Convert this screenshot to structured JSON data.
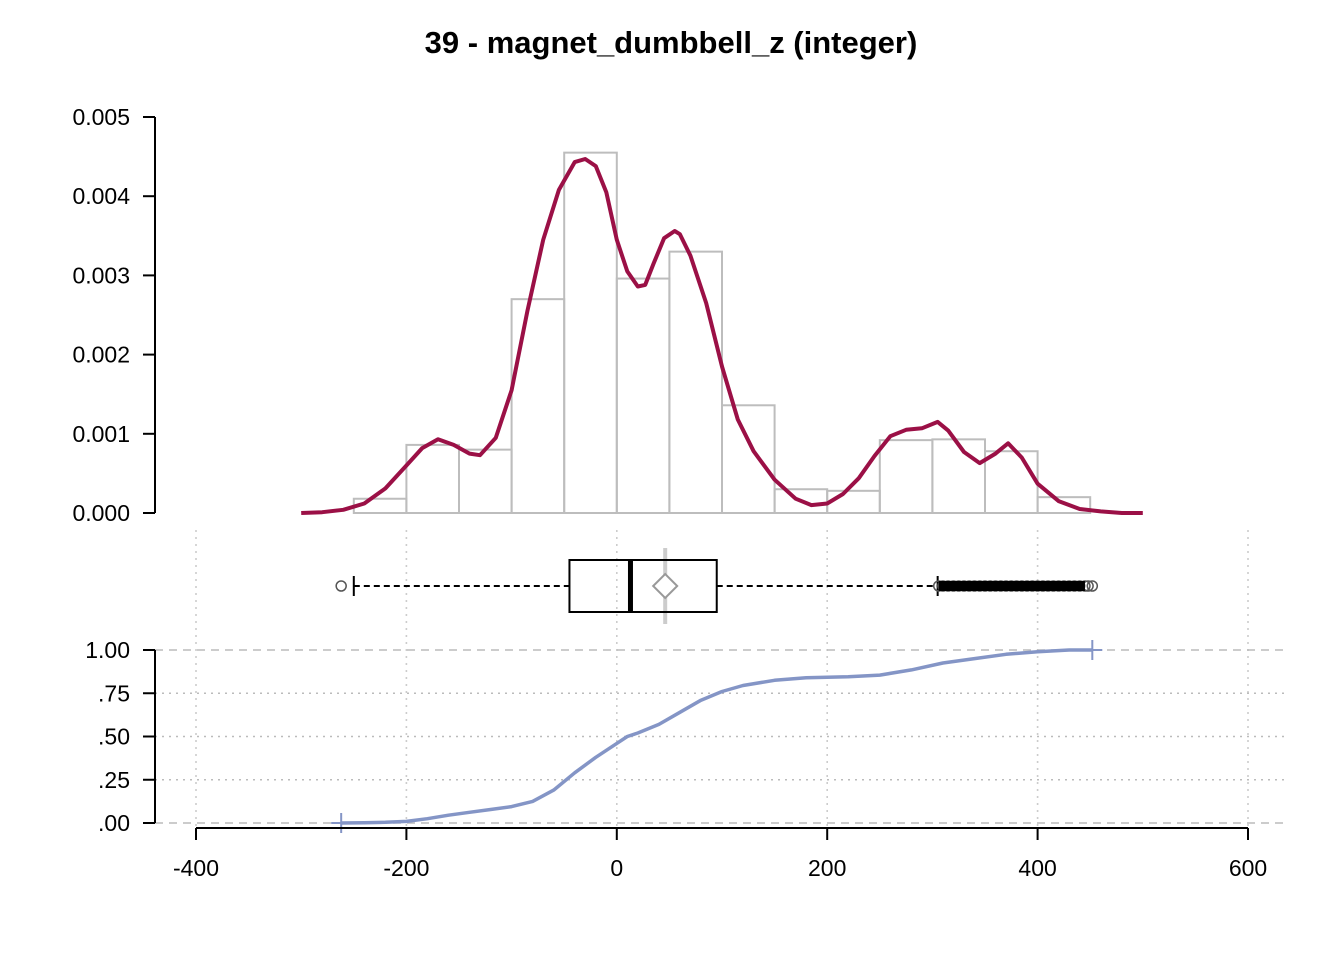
{
  "title": "39 - magnet_dumbbell_z (integer)",
  "colors": {
    "density": "#9b1046",
    "histogram": "#bdbdbd",
    "ecdf": "#8495c6",
    "mean_marker": "#999999"
  },
  "chart_data": [
    {
      "type": "bar",
      "panel": "histogram-density",
      "ylim": [
        0,
        0.005
      ],
      "yticks": [
        "0.000",
        "0.001",
        "0.002",
        "0.003",
        "0.004",
        "0.005"
      ],
      "ytick_values": [
        0,
        0.001,
        0.002,
        0.003,
        0.004,
        0.005
      ],
      "bins": [
        {
          "from": -250,
          "to": -200,
          "density": 0.00018
        },
        {
          "from": -200,
          "to": -150,
          "density": 0.00086
        },
        {
          "from": -150,
          "to": -100,
          "density": 0.0008
        },
        {
          "from": -100,
          "to": -50,
          "density": 0.0027
        },
        {
          "from": -50,
          "to": 0,
          "density": 0.00455
        },
        {
          "from": 0,
          "to": 50,
          "density": 0.00296
        },
        {
          "from": 50,
          "to": 100,
          "density": 0.0033
        },
        {
          "from": 100,
          "to": 150,
          "density": 0.00136
        },
        {
          "from": 150,
          "to": 200,
          "density": 0.0003
        },
        {
          "from": 200,
          "to": 250,
          "density": 0.00028
        },
        {
          "from": 250,
          "to": 300,
          "density": 0.00092
        },
        {
          "from": 300,
          "to": 350,
          "density": 0.00093
        },
        {
          "from": 350,
          "to": 400,
          "density": 0.00078
        },
        {
          "from": 400,
          "to": 450,
          "density": 0.0002
        }
      ],
      "density_curve": {
        "x": [
          -300,
          -280,
          -260,
          -240,
          -220,
          -200,
          -185,
          -170,
          -155,
          -140,
          -130,
          -115,
          -100,
          -85,
          -70,
          -55,
          -40,
          -30,
          -20,
          -10,
          0,
          10,
          20,
          27,
          35,
          45,
          55,
          60,
          70,
          85,
          100,
          115,
          130,
          150,
          170,
          185,
          200,
          215,
          230,
          245,
          260,
          275,
          290,
          305,
          315,
          330,
          345,
          360,
          372,
          385,
          400,
          420,
          440,
          460,
          480,
          500
        ],
        "y": [
          0.0,
          1e-05,
          4e-05,
          0.00012,
          0.00031,
          0.0006,
          0.00082,
          0.00093,
          0.00086,
          0.00075,
          0.00073,
          0.00095,
          0.00155,
          0.00255,
          0.00345,
          0.00408,
          0.00443,
          0.00447,
          0.00438,
          0.00405,
          0.00345,
          0.00305,
          0.00286,
          0.00288,
          0.00315,
          0.00347,
          0.00356,
          0.00352,
          0.00325,
          0.00265,
          0.00185,
          0.00118,
          0.00078,
          0.00042,
          0.00018,
          0.0001,
          0.00012,
          0.00024,
          0.00044,
          0.00072,
          0.00097,
          0.00105,
          0.00107,
          0.00115,
          0.00104,
          0.00077,
          0.00063,
          0.00075,
          0.00088,
          0.0007,
          0.00037,
          0.00015,
          5e-05,
          2e-05,
          0.0,
          0.0
        ]
      }
    },
    {
      "type": "box",
      "panel": "boxplot",
      "whisker_low": -250,
      "q1": -45,
      "median": 13,
      "mean": 46,
      "q3": 95,
      "whisker_high": 305,
      "outliers": [
        -262,
        306,
        310,
        315,
        320,
        325,
        330,
        335,
        340,
        345,
        350,
        355,
        360,
        365,
        370,
        375,
        380,
        385,
        390,
        395,
        400,
        405,
        410,
        415,
        420,
        425,
        430,
        435,
        440,
        445,
        448,
        452
      ]
    },
    {
      "type": "line",
      "panel": "ecdf",
      "ylim": [
        0,
        1
      ],
      "yticks": [
        ".00",
        ".25",
        ".50",
        ".75",
        "1.00"
      ],
      "ytick_values": [
        0,
        0.25,
        0.5,
        0.75,
        1
      ],
      "x": [
        -262,
        -240,
        -220,
        -200,
        -180,
        -160,
        -140,
        -120,
        -100,
        -80,
        -60,
        -40,
        -20,
        0,
        10,
        20,
        40,
        60,
        80,
        100,
        120,
        150,
        180,
        220,
        250,
        280,
        310,
        340,
        370,
        400,
        430,
        452
      ],
      "y": [
        0.0,
        0.002,
        0.004,
        0.009,
        0.025,
        0.045,
        0.062,
        0.078,
        0.095,
        0.125,
        0.19,
        0.29,
        0.38,
        0.46,
        0.5,
        0.52,
        0.57,
        0.64,
        0.71,
        0.76,
        0.795,
        0.825,
        0.84,
        0.845,
        0.855,
        0.885,
        0.925,
        0.95,
        0.975,
        0.99,
        1.0,
        1.0
      ]
    }
  ],
  "x_axis": {
    "xlim": [
      -400,
      600
    ],
    "ticks": [
      -400,
      -200,
      0,
      200,
      400,
      600
    ],
    "tick_labels": [
      "-400",
      "-200",
      "0",
      "200",
      "400",
      "600"
    ]
  }
}
